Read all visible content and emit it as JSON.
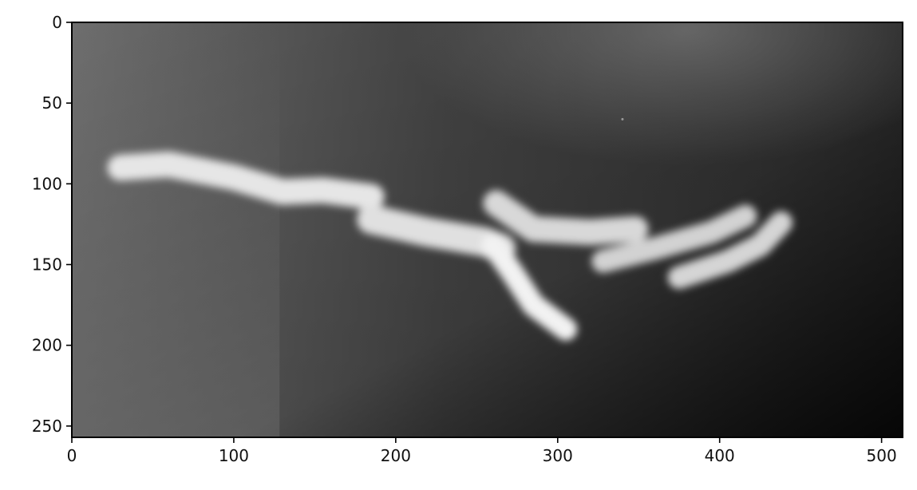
{
  "chart_data": {
    "type": "heatmap",
    "title": "",
    "xlabel": "",
    "ylabel": "",
    "colormap": "gray",
    "image_shape": [
      257,
      513
    ],
    "xlim": [
      0,
      513
    ],
    "ylim": [
      257,
      0
    ],
    "x_ticks": [
      0,
      100,
      200,
      300,
      400,
      500
    ],
    "y_ticks": [
      0,
      50,
      100,
      150,
      200,
      250
    ],
    "x_tick_labels": [
      "0",
      "100",
      "200",
      "300",
      "400",
      "500"
    ],
    "y_tick_labels": [
      "0",
      "50",
      "100",
      "150",
      "200",
      "250"
    ],
    "grid": false,
    "background_gradient": {
      "top_left": "#6a6a6a",
      "top_right": "#474747",
      "bottom_left": "#777777",
      "bottom_right": "#000000",
      "center": "#3f3f3f",
      "glow_color": "#7a7a7a",
      "glow_center": [
        380,
        5
      ]
    },
    "bright_structures": [
      {
        "name": "filament-1",
        "color": "#e6e6e6",
        "thickness": 16,
        "points": [
          [
            30,
            90
          ],
          [
            60,
            88
          ],
          [
            100,
            96
          ],
          [
            130,
            105
          ],
          [
            155,
            104
          ],
          [
            185,
            108
          ]
        ]
      },
      {
        "name": "filament-2",
        "color": "#e0e0e0",
        "thickness": 18,
        "points": [
          [
            185,
            122
          ],
          [
            220,
            130
          ],
          [
            255,
            136
          ],
          [
            265,
            140
          ]
        ]
      },
      {
        "name": "branch-diagonal",
        "color": "#f2f2f2",
        "thickness": 14,
        "points": [
          [
            260,
            138
          ],
          [
            272,
            155
          ],
          [
            285,
            175
          ],
          [
            305,
            190
          ]
        ]
      },
      {
        "name": "filament-3",
        "color": "#d8d8d8",
        "thickness": 16,
        "points": [
          [
            262,
            112
          ],
          [
            285,
            128
          ],
          [
            320,
            130
          ],
          [
            348,
            128
          ]
        ]
      },
      {
        "name": "filament-4",
        "color": "#d2d2d2",
        "thickness": 14,
        "points": [
          [
            328,
            148
          ],
          [
            360,
            140
          ],
          [
            395,
            130
          ],
          [
            416,
            120
          ]
        ]
      },
      {
        "name": "filament-5",
        "color": "#d5d5d5",
        "thickness": 14,
        "points": [
          [
            375,
            158
          ],
          [
            405,
            148
          ],
          [
            425,
            138
          ],
          [
            438,
            124
          ]
        ]
      }
    ],
    "speck": {
      "x": 340,
      "y": 60,
      "color": "#9a9a9a"
    }
  }
}
